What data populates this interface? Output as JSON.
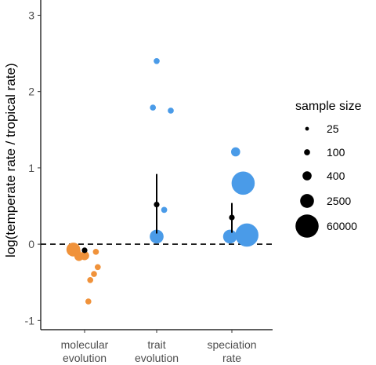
{
  "chart_data": {
    "type": "scatter",
    "ylabel": "log(temperate rate / tropical rate)",
    "ylim": [
      -1.0,
      3.2
    ],
    "yticks": [
      -1,
      0,
      1,
      2,
      3
    ],
    "reference_line_y": 0,
    "categories": [
      {
        "label_line1": "molecular",
        "label_line2": "evolution"
      },
      {
        "label_line1": "trait",
        "label_line2": "evolution"
      },
      {
        "label_line1": "speciation",
        "label_line2": "rate"
      }
    ],
    "colors": {
      "molecular": "#f0923a",
      "trait": "#4a9be8",
      "speciation": "#4a9be8",
      "summary": "#000000"
    },
    "points": [
      {
        "category": 0,
        "jitter": -0.12,
        "y": -0.07,
        "size": 2500,
        "color": "#f0923a"
      },
      {
        "category": 0,
        "jitter": -0.09,
        "y": -0.1,
        "size": 400,
        "color": "#f0923a"
      },
      {
        "category": 0,
        "jitter": -0.06,
        "y": -0.16,
        "size": 400,
        "color": "#f0923a"
      },
      {
        "category": 0,
        "jitter": 0.0,
        "y": -0.15,
        "size": 400,
        "color": "#f0923a"
      },
      {
        "category": 0,
        "jitter": 0.12,
        "y": -0.1,
        "size": 100,
        "color": "#f0923a"
      },
      {
        "category": 0,
        "jitter": 0.14,
        "y": -0.3,
        "size": 100,
        "color": "#f0923a"
      },
      {
        "category": 0,
        "jitter": 0.1,
        "y": -0.39,
        "size": 100,
        "color": "#f0923a"
      },
      {
        "category": 0,
        "jitter": 0.06,
        "y": -0.47,
        "size": 100,
        "color": "#f0923a"
      },
      {
        "category": 0,
        "jitter": 0.04,
        "y": -0.75,
        "size": 100,
        "color": "#f0923a"
      },
      {
        "category": 1,
        "jitter": 0.0,
        "y": 2.4,
        "size": 100,
        "color": "#4a9be8"
      },
      {
        "category": 1,
        "jitter": -0.04,
        "y": 1.79,
        "size": 100,
        "color": "#4a9be8"
      },
      {
        "category": 1,
        "jitter": 0.15,
        "y": 1.75,
        "size": 100,
        "color": "#4a9be8"
      },
      {
        "category": 1,
        "jitter": 0.08,
        "y": 0.45,
        "size": 100,
        "color": "#4a9be8"
      },
      {
        "category": 1,
        "jitter": 0.0,
        "y": 0.1,
        "size": 2500,
        "color": "#4a9be8"
      },
      {
        "category": 2,
        "jitter": 0.04,
        "y": 1.21,
        "size": 400,
        "color": "#4a9be8"
      },
      {
        "category": 2,
        "jitter": 0.12,
        "y": 0.8,
        "size": 60000,
        "color": "#4a9be8"
      },
      {
        "category": 2,
        "jitter": -0.02,
        "y": 0.1,
        "size": 2500,
        "color": "#4a9be8"
      },
      {
        "category": 2,
        "jitter": 0.16,
        "y": 0.12,
        "size": 60000,
        "color": "#4a9be8"
      }
    ],
    "summary": [
      {
        "category": 0,
        "mean": -0.08,
        "lower": -0.08,
        "upper": -0.08
      },
      {
        "category": 1,
        "mean": 0.52,
        "lower": 0.14,
        "upper": 0.92
      },
      {
        "category": 2,
        "mean": 0.35,
        "lower": 0.15,
        "upper": 0.54
      }
    ],
    "legend": {
      "title": "sample size",
      "position": "right",
      "entries": [
        {
          "label": "25",
          "size": 25
        },
        {
          "label": "100",
          "size": 100
        },
        {
          "label": "400",
          "size": 400
        },
        {
          "label": "2500",
          "size": 2500
        },
        {
          "label": "60000",
          "size": 60000
        }
      ]
    }
  }
}
